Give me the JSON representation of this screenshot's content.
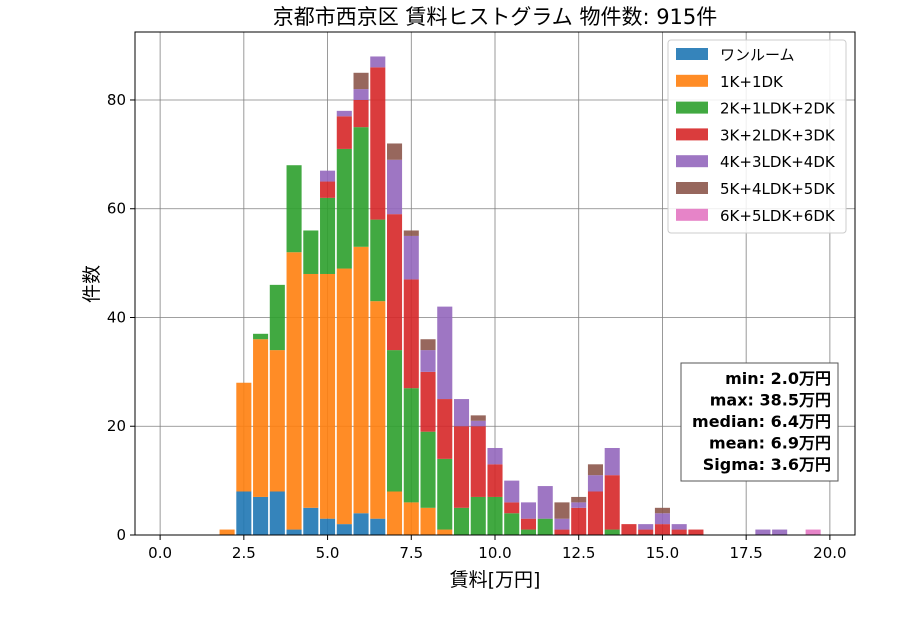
{
  "chart_data": {
    "type": "bar",
    "stacked": true,
    "title": "京都市西京区 賃料ヒストグラム  物件数: 915件",
    "xlabel": "賃料[万円]",
    "ylabel": "件数",
    "xlim": [
      -0.75,
      20.75
    ],
    "ylim": [
      0,
      92.5
    ],
    "xticks": [
      0,
      2.5,
      5,
      7.5,
      10,
      12.5,
      15,
      17.5,
      20
    ],
    "xtick_labels": [
      "0.0",
      "2.5",
      "5.0",
      "7.5",
      "10.0",
      "12.5",
      "15.0",
      "17.5",
      "20.0"
    ],
    "yticks": [
      0,
      20,
      40,
      60,
      80
    ],
    "ytick_labels": [
      "0",
      "20",
      "40",
      "60",
      "80"
    ],
    "grid": true,
    "legend_position": "top-right",
    "bin_width": 0.5,
    "x": [
      2.0,
      2.5,
      3.0,
      3.5,
      4.0,
      4.5,
      5.0,
      5.5,
      6.0,
      6.5,
      7.0,
      7.5,
      8.0,
      8.5,
      9.0,
      9.5,
      10.0,
      10.5,
      11.0,
      11.5,
      12.0,
      12.5,
      13.0,
      13.5,
      14.0,
      14.5,
      15.0,
      15.5,
      16.0,
      18.0,
      18.5,
      19.5
    ],
    "series": [
      {
        "name": "ワンルーム",
        "color": "#1f77b4",
        "values": [
          0,
          8,
          7,
          8,
          1,
          5,
          3,
          2,
          4,
          3,
          0,
          0,
          0,
          0,
          0,
          0,
          0,
          0,
          0,
          0,
          0,
          0,
          0,
          0,
          0,
          0,
          0,
          0,
          0,
          0,
          0,
          0
        ]
      },
      {
        "name": "1K+1DK",
        "color": "#ff7f0e",
        "values": [
          1,
          20,
          29,
          26,
          51,
          43,
          45,
          47,
          49,
          40,
          8,
          6,
          5,
          1,
          0,
          0,
          0,
          0,
          0,
          0,
          0,
          0,
          0,
          0,
          0,
          0,
          0,
          0,
          0,
          0,
          0,
          0
        ]
      },
      {
        "name": "2K+1LDK+2DK",
        "color": "#2ca02c",
        "values": [
          0,
          0,
          1,
          12,
          16,
          8,
          14,
          22,
          22,
          15,
          26,
          21,
          14,
          13,
          5,
          7,
          7,
          4,
          1,
          3,
          0,
          0,
          0,
          1,
          0,
          0,
          0,
          0,
          0,
          0,
          0,
          0
        ]
      },
      {
        "name": "3K+2LDK+3DK",
        "color": "#d62728",
        "values": [
          0,
          0,
          0,
          0,
          0,
          0,
          3,
          6,
          5,
          28,
          25,
          20,
          11,
          11,
          15,
          13,
          6,
          2,
          2,
          0,
          1,
          5,
          8,
          10,
          2,
          1,
          2,
          1,
          1,
          0,
          0,
          0
        ]
      },
      {
        "name": "4K+3LDK+4DK",
        "color": "#9467bd",
        "values": [
          0,
          0,
          0,
          0,
          0,
          0,
          2,
          1,
          2,
          2,
          10,
          8,
          4,
          17,
          5,
          1,
          3,
          4,
          3,
          6,
          2,
          1,
          3,
          5,
          0,
          1,
          2,
          1,
          0,
          1,
          1,
          0
        ]
      },
      {
        "name": "5K+4LDK+5DK",
        "color": "#8c564b",
        "values": [
          0,
          0,
          0,
          0,
          0,
          0,
          0,
          0,
          3,
          0,
          3,
          1,
          2,
          0,
          0,
          1,
          0,
          0,
          0,
          0,
          3,
          1,
          2,
          0,
          0,
          0,
          1,
          0,
          0,
          0,
          0,
          0
        ]
      },
      {
        "name": "6K+5LDK+6DK",
        "color": "#e377c2",
        "values": [
          0,
          0,
          0,
          0,
          0,
          0,
          0,
          0,
          0,
          0,
          0,
          0,
          0,
          0,
          0,
          0,
          0,
          0,
          0,
          0,
          0,
          0,
          0,
          0,
          0,
          0,
          0,
          0,
          0,
          0,
          0,
          1
        ]
      }
    ],
    "annotation": {
      "position": "right",
      "lines": [
        "min: 2.0万円",
        "max: 38.5万円",
        "median: 6.4万円",
        "mean: 6.9万円",
        "Sigma: 3.6万円"
      ]
    }
  }
}
